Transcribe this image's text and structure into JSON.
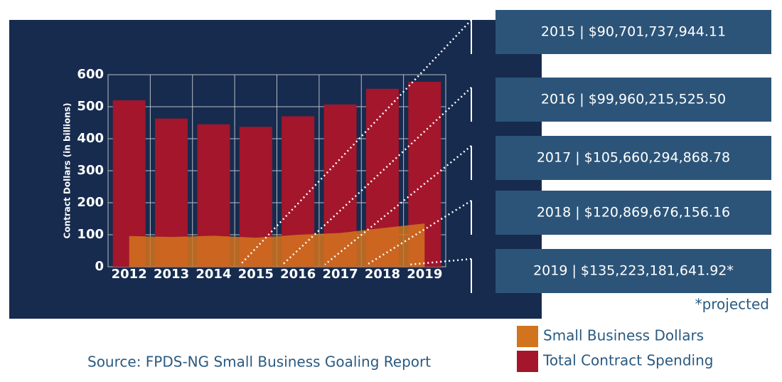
{
  "chart_data": {
    "type": "bar",
    "y_label": "Contract Dollars (in billions)",
    "categories": [
      "2012",
      "2013",
      "2014",
      "2015",
      "2016",
      "2017",
      "2018",
      "2019"
    ],
    "series": [
      {
        "name": "Small Business Dollars",
        "type": "area",
        "color": "#d2731e",
        "values": [
          96,
          93,
          97,
          90.7,
          99.96,
          105.66,
          120.87,
          135.22
        ]
      },
      {
        "name": "Total Contract Spending",
        "type": "bar",
        "color": "#a3162c",
        "values": [
          520,
          463,
          445,
          437,
          470,
          507,
          556,
          578
        ]
      }
    ],
    "ylim": [
      0,
      600
    ],
    "yticks": [
      0,
      100,
      200,
      300,
      400,
      500,
      600
    ],
    "grid": true,
    "annotations": [
      "2015 | $90,701,737,944.11",
      "2016 | $99,960,215,525.50",
      "2017 | $105,660,294,868.78",
      "2018 | $120,869,676,156.16",
      "2019 |  $135,223,181,641.92*"
    ],
    "footnote": "*projected",
    "source": "Source: FPDS-NG Small Business Goaling Report"
  }
}
